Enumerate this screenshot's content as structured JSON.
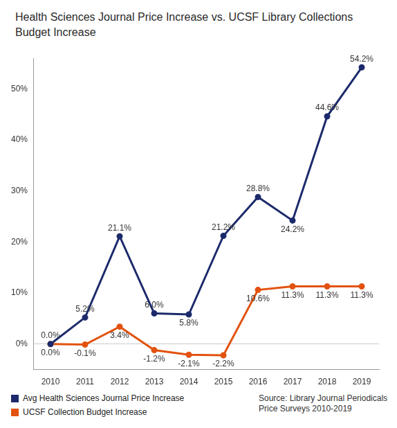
{
  "chart_data": {
    "type": "line",
    "title": "Health Sciences Journal Price Increase vs. UCSF Library Collections Budget Increase",
    "categories": [
      "2010",
      "2011",
      "2012",
      "2013",
      "2014",
      "2015",
      "2016",
      "2017",
      "2018",
      "2019"
    ],
    "series": [
      {
        "name": "Avg Health Sciences Journal Price Increase",
        "color": "#1c2a6b",
        "marker": "circle",
        "values": [
          0.0,
          5.2,
          21.1,
          6.0,
          5.8,
          21.2,
          28.8,
          24.2,
          44.6,
          54.2
        ],
        "value_labels": [
          "0.0%",
          "5.2%",
          "21.1%",
          "6.0%",
          "5.8%",
          "21.2%",
          "28.8%",
          "24.2%",
          "44.6%",
          "54.2%"
        ]
      },
      {
        "name": "UCSF Collection Budget Increase",
        "color": "#e2520f",
        "marker": "circle",
        "values": [
          0.0,
          -0.1,
          3.4,
          -1.2,
          -2.1,
          -2.2,
          10.6,
          11.3,
          11.3,
          11.3
        ],
        "value_labels": [
          "0.0%",
          "-0.1%",
          "3.4%",
          "-1.2%",
          "-2.1%",
          "-2.2%",
          "10.6%",
          "11.3%",
          "11.3%",
          "11.3%"
        ]
      }
    ],
    "ylim": [
      -5,
      56
    ],
    "yticks": [
      {
        "value": 0,
        "label": "0%"
      },
      {
        "value": 10,
        "label": "10%"
      },
      {
        "value": 20,
        "label": "20%"
      },
      {
        "value": 30,
        "label": "30%"
      },
      {
        "value": 40,
        "label": "40%"
      },
      {
        "value": 50,
        "label": "50%"
      }
    ],
    "grid": false,
    "data_labels": true,
    "legend": "bottom",
    "source": "Source: Library Journal Periodicals Price Surveys 2010-2019"
  }
}
